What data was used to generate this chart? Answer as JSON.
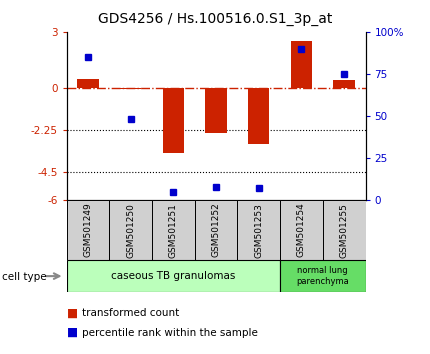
{
  "title": "GDS4256 / Hs.100516.0.S1_3p_at",
  "samples": [
    "GSM501249",
    "GSM501250",
    "GSM501251",
    "GSM501252",
    "GSM501253",
    "GSM501254",
    "GSM501255"
  ],
  "red_bars": [
    0.5,
    -0.05,
    -3.5,
    -2.4,
    -3.0,
    2.5,
    0.4
  ],
  "blue_dots_pct": [
    85,
    48,
    5,
    8,
    7,
    90,
    75
  ],
  "ylim_left": [
    -6,
    3
  ],
  "ylim_right": [
    0,
    100
  ],
  "yticks_left": [
    -6,
    -4.5,
    -2.25,
    0,
    3
  ],
  "ytick_labels_left": [
    "-6",
    "-4.5",
    "-2.25",
    "0",
    "3"
  ],
  "yticks_right": [
    0,
    25,
    50,
    75,
    100
  ],
  "ytick_labels_right": [
    "0",
    "25",
    "50",
    "75",
    "100%"
  ],
  "dotted_lines": [
    -2.25,
    -4.5
  ],
  "red_color": "#cc2200",
  "blue_color": "#0000cc",
  "bar_width": 0.5,
  "group1_samples": [
    0,
    1,
    2,
    3,
    4
  ],
  "group2_samples": [
    5,
    6
  ],
  "group1_label": "caseous TB granulomas",
  "group2_label": "normal lung\nparenchyma",
  "group1_color": "#bbffbb",
  "group2_color": "#66dd66",
  "cell_type_label": "cell type",
  "legend_red": "transformed count",
  "legend_blue": "percentile rank within the sample",
  "title_fontsize": 10,
  "tick_fontsize": 7.5,
  "label_fontsize": 6.5,
  "ct_fontsize": 7.5
}
